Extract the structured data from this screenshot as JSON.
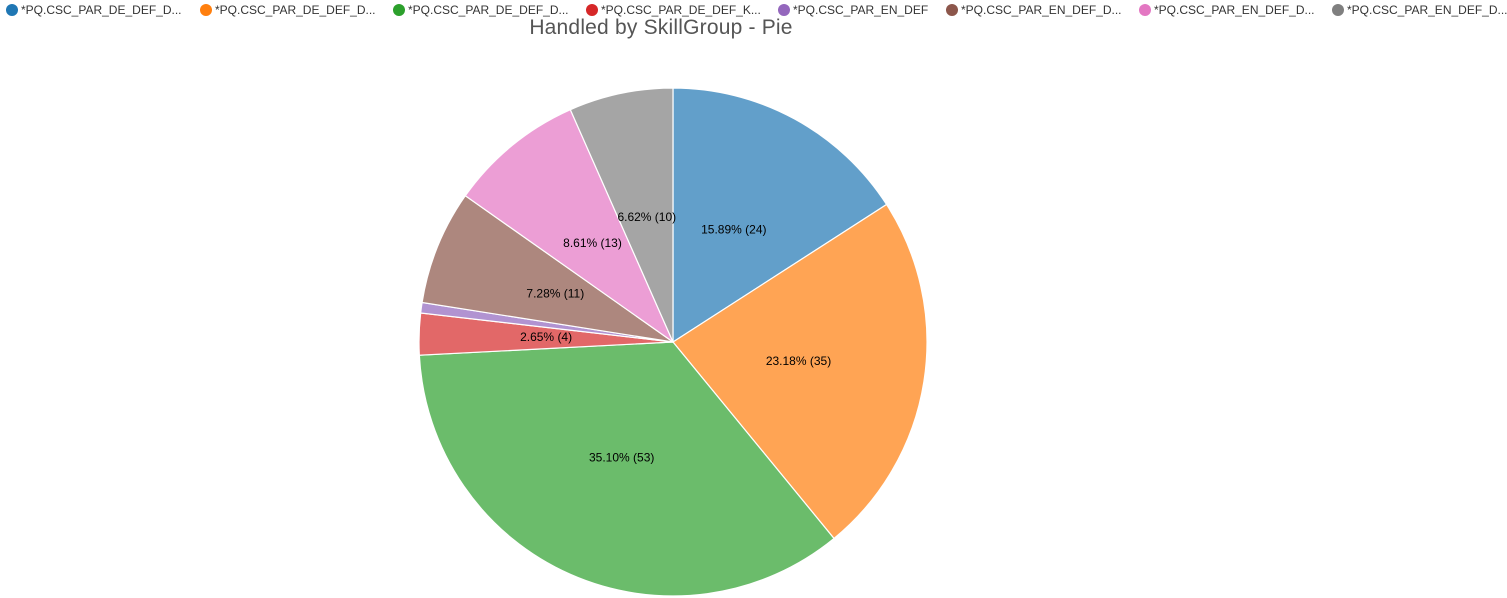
{
  "chart_data": {
    "type": "pie",
    "title": "Handled by SkillGroup - Pie",
    "legend_placement": "top",
    "slices": [
      {
        "name": "*PQ.CSC_PAR_DE_DEF_D...",
        "value": 24,
        "label": "15.89% (24)",
        "color": "#629fca",
        "legend_color": "#1f77b4"
      },
      {
        "name": "*PQ.CSC_PAR_DE_DEF_D...",
        "value": 35,
        "label": "23.18% (35)",
        "color": "#ffa454",
        "legend_color": "#ff7f0e"
      },
      {
        "name": "*PQ.CSC_PAR_DE_DEF_D...",
        "value": 53,
        "label": "35.10% (53)",
        "color": "#6bbc6b",
        "legend_color": "#2ca02c"
      },
      {
        "name": "*PQ.CSC_PAR_DE_DEF_K...",
        "value": 4,
        "label": "2.65% (4)",
        "color": "#e26868",
        "legend_color": "#d62728"
      },
      {
        "name": "*PQ.CSC_PAR_EN_DEF",
        "value": 1,
        "label": "",
        "color": "#b193d1",
        "legend_color": "#9467bd"
      },
      {
        "name": "*PQ.CSC_PAR_EN_DEF_D...",
        "value": 11,
        "label": "7.28% (11)",
        "color": "#ad877e",
        "legend_color": "#8c564b"
      },
      {
        "name": "*PQ.CSC_PAR_EN_DEF_D...",
        "value": 13,
        "label": "8.61% (13)",
        "color": "#ec9ed5",
        "legend_color": "#e377c2"
      },
      {
        "name": "*PQ.CSC_PAR_EN_DEF_D...",
        "value": 10,
        "label": "6.62% (10)",
        "color": "#a5a5a5",
        "legend_color": "#7f7f7f"
      }
    ]
  }
}
